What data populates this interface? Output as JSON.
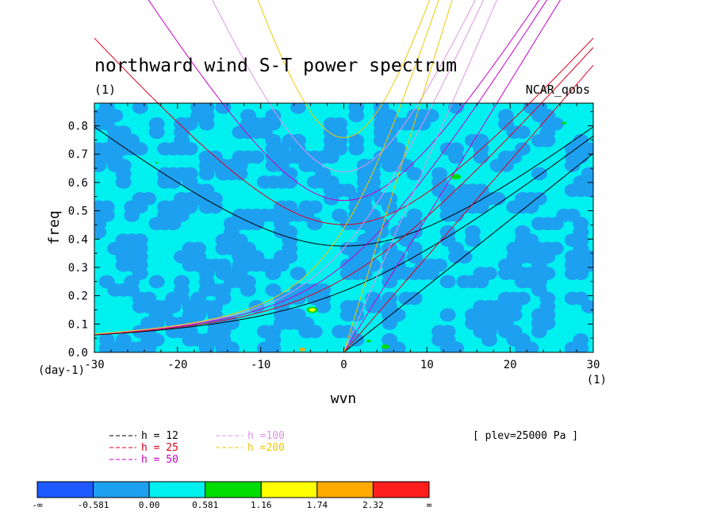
{
  "chart_data": {
    "type": "contour",
    "title": "northward wind S-T power spectrum",
    "subtitle": "(1)",
    "source_label": "NCAR_qobs",
    "xlabel": "wvn",
    "ylabel": "freq",
    "x_unit_label": "(1)",
    "y_unit_label": "(day-1)",
    "xlim": [
      -30,
      30
    ],
    "ylim": [
      0.0,
      0.88
    ],
    "x_ticks": [
      "-30",
      "-20",
      "-10",
      "0",
      "10",
      "20",
      "30"
    ],
    "x_tick_values": [
      -30,
      -20,
      -10,
      0,
      10,
      20,
      30
    ],
    "y_ticks": [
      "0.0",
      "0.1",
      "0.2",
      "0.3",
      "0.4",
      "0.5",
      "0.6",
      "0.7",
      "0.8"
    ],
    "y_tick_values": [
      0.0,
      0.1,
      0.2,
      0.3,
      0.4,
      0.5,
      0.6,
      0.7,
      0.8
    ],
    "plev_label": "[ plev=25000 Pa ]",
    "dispersion_curves": {
      "equivalent_depths": [
        12,
        25,
        50,
        100,
        200
      ],
      "legend": [
        {
          "label": "h = 12",
          "color": "#000000",
          "h": 12
        },
        {
          "label": "h = 25",
          "color": "#e0001e",
          "h": 25
        },
        {
          "label": "h = 50",
          "color": "#c800c8",
          "h": 50
        },
        {
          "label": "h =100",
          "color": "#dc96e6",
          "h": 100
        },
        {
          "label": "h =200",
          "color": "#f0c800",
          "h": 200
        }
      ],
      "families": [
        "kelvin",
        "equatorial_rossby_gravity",
        "inertio_gravity_n1"
      ]
    },
    "colorbar": {
      "colors": [
        "#1e5aff",
        "#1ea0f0",
        "#00f0f0",
        "#00dc00",
        "#ffff00",
        "#ffaa00",
        "#ff1e1e"
      ],
      "labels": [
        "-∞",
        "-0.581",
        "0.00",
        "0.581",
        "1.16",
        "1.74",
        "2.32",
        "∞"
      ]
    },
    "field_note": "mostly values between -0.581 and 0.581 with small isolated patches above 0.581"
  }
}
